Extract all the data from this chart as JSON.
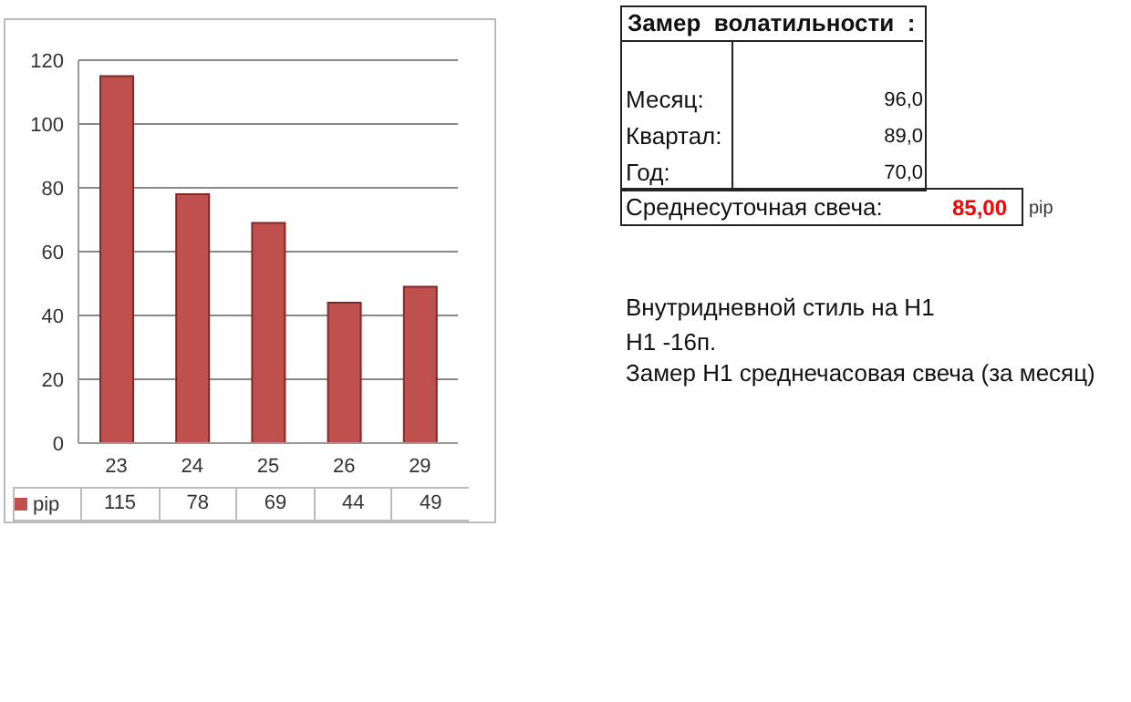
{
  "chart_data": [
    {
      "type": "bar",
      "categories": [
        "23",
        "24",
        "25",
        "26",
        "29"
      ],
      "series": [
        {
          "name": "pip",
          "color": "#c0504d",
          "values": [
            115,
            78,
            69,
            44,
            49
          ]
        }
      ],
      "ylim": [
        0,
        120
      ],
      "yticks": [
        0,
        20,
        40,
        60,
        80,
        100,
        120
      ],
      "grid": "y",
      "legend": "bottom",
      "data_labels": true
    },
    {
      "type": "other",
      "annotations": [
        "Замер  волатильности  :",
        "Месяц:",
        "96,0",
        "Квартал:",
        "89,0",
        "Год:",
        "70,0",
        "Среднесуточная свеча:",
        "85,00",
        "pip",
        "Внутридневной стиль на H1",
        "H1 -16п.",
        "Замер H1 среднечасовая свеча (за месяц)"
      ]
    }
  ]
}
